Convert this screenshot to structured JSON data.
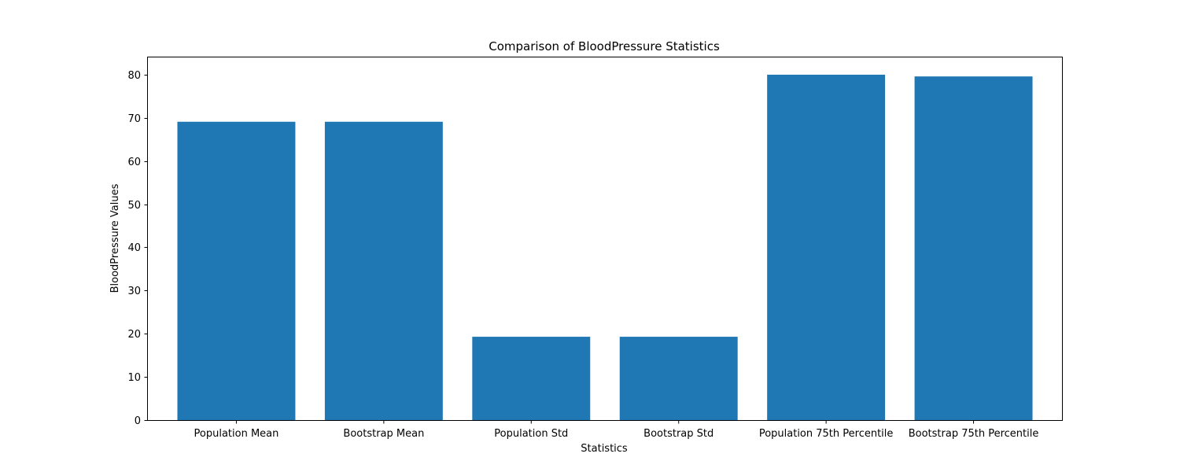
{
  "chart_data": {
    "type": "bar",
    "title": "Comparison of BloodPressure Statistics",
    "xlabel": "Statistics",
    "ylabel": "BloodPressure Values",
    "categories": [
      "Population Mean",
      "Bootstrap Mean",
      "Population Std",
      "Bootstrap Std",
      "Population 75th Percentile",
      "Bootstrap 75th Percentile"
    ],
    "values": [
      69.1,
      69.1,
      19.3,
      19.3,
      80.0,
      79.6
    ],
    "ylim": [
      0,
      84
    ],
    "yticks": [
      0,
      10,
      20,
      30,
      40,
      50,
      60,
      70,
      80
    ],
    "bar_color": "#1f77b4",
    "grid": false,
    "legend": "none"
  }
}
